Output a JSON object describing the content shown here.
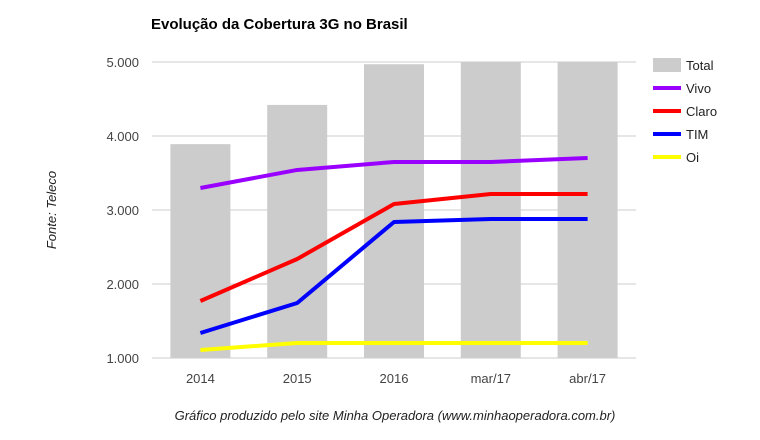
{
  "chart_data": {
    "type": "bar+line",
    "title": "Evolução da Cobertura 3G no Brasil",
    "ylabel": "Fonte: Teleco",
    "footer": "Gráfico produzido pelo site Minha Operadora (www.minhaoperadora.com.br)",
    "categories": [
      "2014",
      "2015",
      "2016",
      "mar/17",
      "abr/17"
    ],
    "yticks": [
      "1.000",
      "2.000",
      "3.000",
      "4.000",
      "5.000"
    ],
    "ytick_values": [
      1000,
      2000,
      3000,
      4000,
      5000
    ],
    "ylim": [
      1000,
      5000
    ],
    "grid": true,
    "legend_position": "right",
    "bars": {
      "name": "Total",
      "color": "#cccccc",
      "values": [
        3890,
        4420,
        4970,
        5000,
        5000
      ]
    },
    "series": [
      {
        "name": "Vivo",
        "color": "#9900ff",
        "values": [
          3297,
          3541,
          3649,
          3649,
          3703
        ]
      },
      {
        "name": "Claro",
        "color": "#ff0000",
        "values": [
          1770,
          2338,
          3081,
          3216,
          3216
        ]
      },
      {
        "name": "TIM",
        "color": "#0000ff",
        "values": [
          1338,
          1743,
          2838,
          2878,
          2878
        ]
      },
      {
        "name": "Oi",
        "color": "#ffff00",
        "values": [
          1108,
          1203,
          1203,
          1203,
          1203
        ]
      }
    ]
  }
}
